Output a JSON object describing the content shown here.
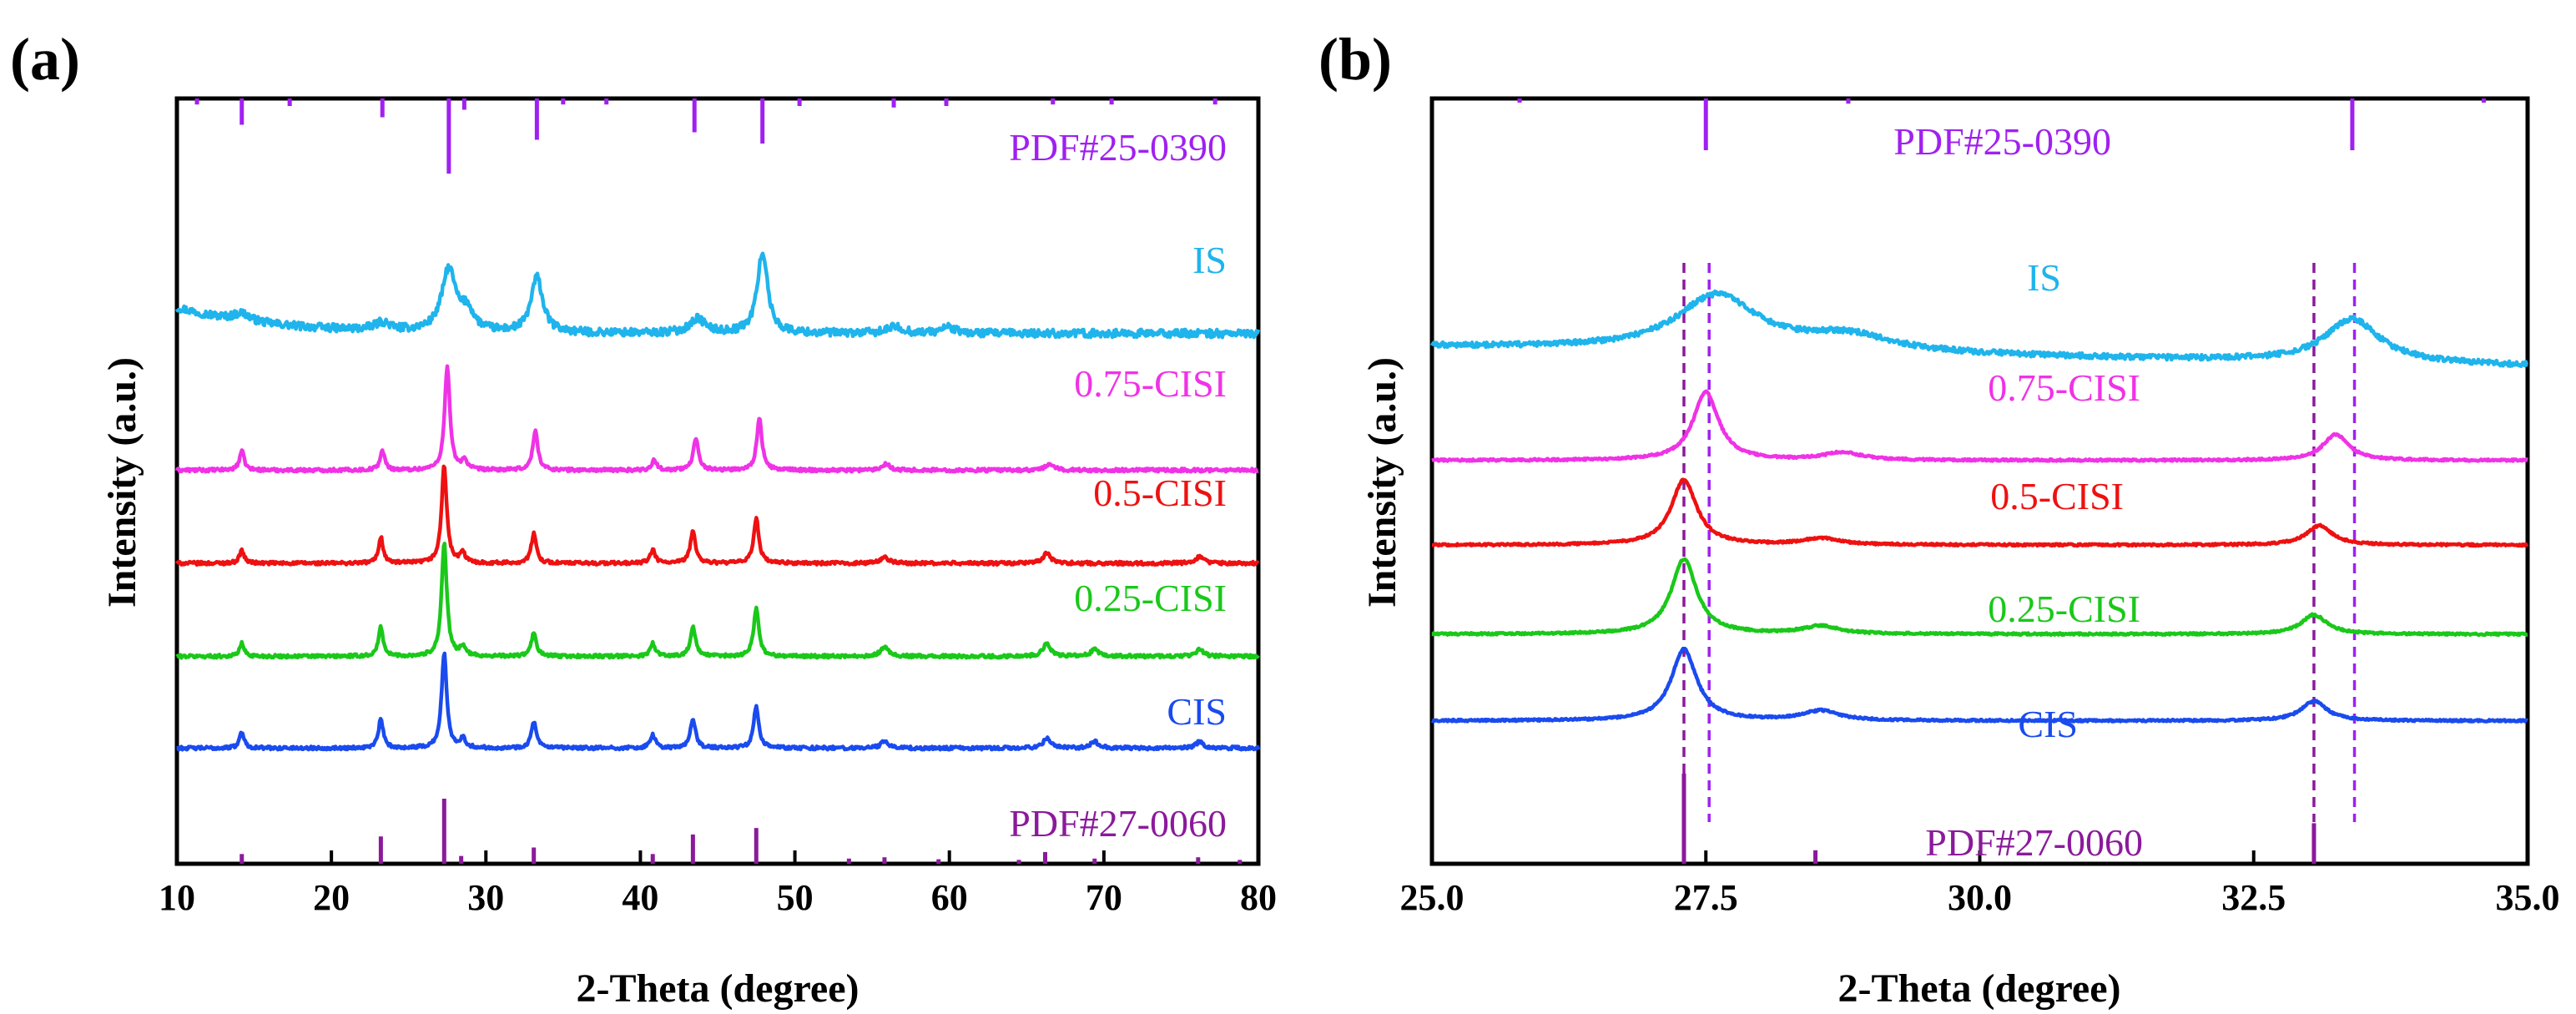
{
  "chart_data": [
    {
      "panel": "(a)",
      "type": "line",
      "xlabel": "2-Theta (degree)",
      "ylabel": "Intensity (a.u.)",
      "xlim": [
        10,
        80
      ],
      "xticks": [
        10,
        20,
        30,
        40,
        50,
        60,
        70,
        80
      ],
      "xtick_labels": [
        "10",
        "20",
        "30",
        "40",
        "50",
        "60",
        "70",
        "80"
      ],
      "y_ticks_shown": false,
      "reference_patterns": [
        {
          "name": "PDF#25-0390",
          "color": "#a020f0",
          "position": "top",
          "lines": [
            {
              "x": 11.3,
              "h": 0.08
            },
            {
              "x": 14.2,
              "h": 0.35
            },
            {
              "x": 17.3,
              "h": 0.1
            },
            {
              "x": 23.3,
              "h": 0.25
            },
            {
              "x": 27.6,
              "h": 1.0
            },
            {
              "x": 28.6,
              "h": 0.15
            },
            {
              "x": 33.3,
              "h": 0.55
            },
            {
              "x": 35.0,
              "h": 0.08
            },
            {
              "x": 37.8,
              "h": 0.08
            },
            {
              "x": 43.5,
              "h": 0.45
            },
            {
              "x": 47.9,
              "h": 0.6
            },
            {
              "x": 50.3,
              "h": 0.1
            },
            {
              "x": 56.4,
              "h": 0.12
            },
            {
              "x": 59.8,
              "h": 0.1
            },
            {
              "x": 66.7,
              "h": 0.08
            },
            {
              "x": 70.5,
              "h": 0.08
            },
            {
              "x": 77.2,
              "h": 0.08
            }
          ]
        },
        {
          "name": "PDF#27-0060",
          "color": "#8b1a9b",
          "position": "bottom",
          "lines": [
            {
              "x": 14.2,
              "h": 0.15
            },
            {
              "x": 23.2,
              "h": 0.42
            },
            {
              "x": 27.3,
              "h": 1.0
            },
            {
              "x": 28.4,
              "h": 0.12
            },
            {
              "x": 33.1,
              "h": 0.25
            },
            {
              "x": 40.8,
              "h": 0.15
            },
            {
              "x": 43.4,
              "h": 0.45
            },
            {
              "x": 47.5,
              "h": 0.55
            },
            {
              "x": 53.5,
              "h": 0.08
            },
            {
              "x": 55.8,
              "h": 0.1
            },
            {
              "x": 59.3,
              "h": 0.07
            },
            {
              "x": 64.5,
              "h": 0.06
            },
            {
              "x": 66.2,
              "h": 0.18
            },
            {
              "x": 69.4,
              "h": 0.08
            },
            {
              "x": 76.1,
              "h": 0.1
            },
            {
              "x": 78.8,
              "h": 0.06
            }
          ]
        }
      ],
      "series": [
        {
          "name": "IS",
          "color": "#1fb4ec",
          "baseline": 0.68,
          "noise": 0.006,
          "drift": 0.04,
          "peaks": [
            {
              "x": 14.2,
              "h": 0.012,
              "w": 0.6
            },
            {
              "x": 23.3,
              "h": 0.012,
              "w": 0.6
            },
            {
              "x": 27.6,
              "h": 0.095,
              "w": 0.55
            },
            {
              "x": 28.8,
              "h": 0.03,
              "w": 0.5
            },
            {
              "x": 33.3,
              "h": 0.085,
              "w": 0.45
            },
            {
              "x": 43.7,
              "h": 0.022,
              "w": 0.6
            },
            {
              "x": 47.9,
              "h": 0.125,
              "w": 0.4
            },
            {
              "x": 56.5,
              "h": 0.01,
              "w": 0.6
            },
            {
              "x": 59.9,
              "h": 0.01,
              "w": 0.5
            }
          ]
        },
        {
          "name": "0.75-CISI",
          "color": "#f032e6",
          "baseline": 0.47,
          "noise": 0.0025,
          "drift": 0,
          "peaks": [
            {
              "x": 14.2,
              "h": 0.03,
              "w": 0.18
            },
            {
              "x": 23.3,
              "h": 0.03,
              "w": 0.18
            },
            {
              "x": 27.5,
              "h": 0.16,
              "w": 0.2
            },
            {
              "x": 28.6,
              "h": 0.015,
              "w": 0.2
            },
            {
              "x": 33.2,
              "h": 0.06,
              "w": 0.2
            },
            {
              "x": 40.9,
              "h": 0.015,
              "w": 0.2
            },
            {
              "x": 43.6,
              "h": 0.05,
              "w": 0.2
            },
            {
              "x": 47.7,
              "h": 0.08,
              "w": 0.2
            },
            {
              "x": 55.9,
              "h": 0.01,
              "w": 0.3
            },
            {
              "x": 66.5,
              "h": 0.01,
              "w": 0.3
            }
          ]
        },
        {
          "name": "0.5-CISI",
          "color": "#ee1111",
          "baseline": 0.327,
          "noise": 0.0025,
          "drift": 0,
          "peaks": [
            {
              "x": 14.2,
              "h": 0.02,
              "w": 0.18
            },
            {
              "x": 23.2,
              "h": 0.04,
              "w": 0.18
            },
            {
              "x": 27.3,
              "h": 0.15,
              "w": 0.2
            },
            {
              "x": 28.5,
              "h": 0.015,
              "w": 0.2
            },
            {
              "x": 33.1,
              "h": 0.045,
              "w": 0.2
            },
            {
              "x": 40.8,
              "h": 0.02,
              "w": 0.2
            },
            {
              "x": 43.4,
              "h": 0.05,
              "w": 0.2
            },
            {
              "x": 47.5,
              "h": 0.07,
              "w": 0.2
            },
            {
              "x": 55.8,
              "h": 0.01,
              "w": 0.3
            },
            {
              "x": 66.3,
              "h": 0.015,
              "w": 0.3
            },
            {
              "x": 76.2,
              "h": 0.01,
              "w": 0.3
            }
          ]
        },
        {
          "name": "0.25-CISI",
          "color": "#1ac81a",
          "baseline": 0.184,
          "noise": 0.0025,
          "drift": 0,
          "peaks": [
            {
              "x": 14.2,
              "h": 0.02,
              "w": 0.18
            },
            {
              "x": 23.2,
              "h": 0.045,
              "w": 0.18
            },
            {
              "x": 27.3,
              "h": 0.175,
              "w": 0.2
            },
            {
              "x": 28.5,
              "h": 0.015,
              "w": 0.2
            },
            {
              "x": 33.1,
              "h": 0.035,
              "w": 0.2
            },
            {
              "x": 40.8,
              "h": 0.02,
              "w": 0.2
            },
            {
              "x": 43.4,
              "h": 0.045,
              "w": 0.2
            },
            {
              "x": 47.5,
              "h": 0.075,
              "w": 0.2
            },
            {
              "x": 55.8,
              "h": 0.015,
              "w": 0.3
            },
            {
              "x": 66.3,
              "h": 0.02,
              "w": 0.3
            },
            {
              "x": 69.4,
              "h": 0.01,
              "w": 0.3
            },
            {
              "x": 76.2,
              "h": 0.01,
              "w": 0.3
            }
          ]
        },
        {
          "name": "CIS",
          "color": "#1a4bee",
          "baseline": 0.043,
          "noise": 0.0025,
          "drift": 0,
          "peaks": [
            {
              "x": 14.2,
              "h": 0.025,
              "w": 0.18
            },
            {
              "x": 23.2,
              "h": 0.045,
              "w": 0.18
            },
            {
              "x": 27.3,
              "h": 0.145,
              "w": 0.2
            },
            {
              "x": 28.5,
              "h": 0.015,
              "w": 0.2
            },
            {
              "x": 33.1,
              "h": 0.04,
              "w": 0.2
            },
            {
              "x": 40.8,
              "h": 0.02,
              "w": 0.2
            },
            {
              "x": 43.4,
              "h": 0.045,
              "w": 0.2
            },
            {
              "x": 47.5,
              "h": 0.065,
              "w": 0.2
            },
            {
              "x": 55.8,
              "h": 0.01,
              "w": 0.3
            },
            {
              "x": 66.3,
              "h": 0.015,
              "w": 0.3
            },
            {
              "x": 69.4,
              "h": 0.01,
              "w": 0.3
            },
            {
              "x": 76.2,
              "h": 0.01,
              "w": 0.3
            }
          ]
        }
      ],
      "dashed_lines": []
    },
    {
      "panel": "(b)",
      "type": "line",
      "xlabel": "2-Theta (degree)",
      "ylabel": "Intensity (a.u.)",
      "xlim": [
        25.0,
        35.0
      ],
      "xticks": [
        25.0,
        27.5,
        30.0,
        32.5,
        35.0
      ],
      "xtick_labels": [
        "25.0",
        "27.5",
        "30.0",
        "32.5",
        "35.0"
      ],
      "y_ticks_shown": false,
      "reference_patterns": [
        {
          "name": "PDF#25-0390",
          "color": "#a020f0",
          "position": "top",
          "lines": [
            {
              "x": 25.8,
              "h": 0.08
            },
            {
              "x": 27.5,
              "h": 1.0
            },
            {
              "x": 28.8,
              "h": 0.1
            },
            {
              "x": 33.4,
              "h": 1.0
            },
            {
              "x": 34.6,
              "h": 0.08
            }
          ]
        },
        {
          "name": "PDF#27-0060",
          "color": "#8b1a9b",
          "position": "bottom",
          "lines": [
            {
              "x": 27.3,
              "h": 1.0
            },
            {
              "x": 28.5,
              "h": 0.15
            },
            {
              "x": 33.05,
              "h": 0.45
            }
          ]
        }
      ],
      "series": [
        {
          "name": "IS",
          "color": "#1fb4ec",
          "baseline": 0.66,
          "noise": 0.004,
          "drift": 0,
          "peaks": [
            {
              "x": 27.6,
              "h": 0.085,
              "w": 0.45
            },
            {
              "x": 28.8,
              "h": 0.025,
              "w": 0.5
            },
            {
              "x": 33.4,
              "h": 0.067,
              "w": 0.3
            }
          ],
          "tail": -0.03
        },
        {
          "name": "0.75-CISI",
          "color": "#f032e6",
          "baseline": 0.485,
          "noise": 0.0015,
          "drift": 0,
          "peaks": [
            {
              "x": 27.5,
              "h": 0.105,
              "w": 0.14
            },
            {
              "x": 28.75,
              "h": 0.012,
              "w": 0.2
            },
            {
              "x": 33.25,
              "h": 0.04,
              "w": 0.14
            }
          ]
        },
        {
          "name": "0.5-CISI",
          "color": "#ee1111",
          "baseline": 0.355,
          "noise": 0.0015,
          "drift": 0,
          "peaks": [
            {
              "x": 27.3,
              "h": 0.1,
              "w": 0.14
            },
            {
              "x": 28.55,
              "h": 0.01,
              "w": 0.2
            },
            {
              "x": 33.1,
              "h": 0.03,
              "w": 0.14
            }
          ]
        },
        {
          "name": "0.25-CISI",
          "color": "#1ac81a",
          "baseline": 0.218,
          "noise": 0.0015,
          "drift": 0,
          "peaks": [
            {
              "x": 27.3,
              "h": 0.115,
              "w": 0.14
            },
            {
              "x": 28.55,
              "h": 0.012,
              "w": 0.2
            },
            {
              "x": 33.05,
              "h": 0.03,
              "w": 0.14
            }
          ]
        },
        {
          "name": "CIS",
          "color": "#1a4bee",
          "baseline": 0.085,
          "noise": 0.0015,
          "drift": 0,
          "peaks": [
            {
              "x": 27.3,
              "h": 0.11,
              "w": 0.14
            },
            {
              "x": 28.55,
              "h": 0.015,
              "w": 0.2
            },
            {
              "x": 33.05,
              "h": 0.03,
              "w": 0.14
            }
          ]
        }
      ],
      "dashed_lines": [
        {
          "x": 27.3,
          "color": "#8b1a9b"
        },
        {
          "x": 27.53,
          "color": "#a020f0"
        },
        {
          "x": 33.05,
          "color": "#8b1a9b"
        },
        {
          "x": 33.42,
          "color": "#a020f0"
        }
      ]
    }
  ]
}
